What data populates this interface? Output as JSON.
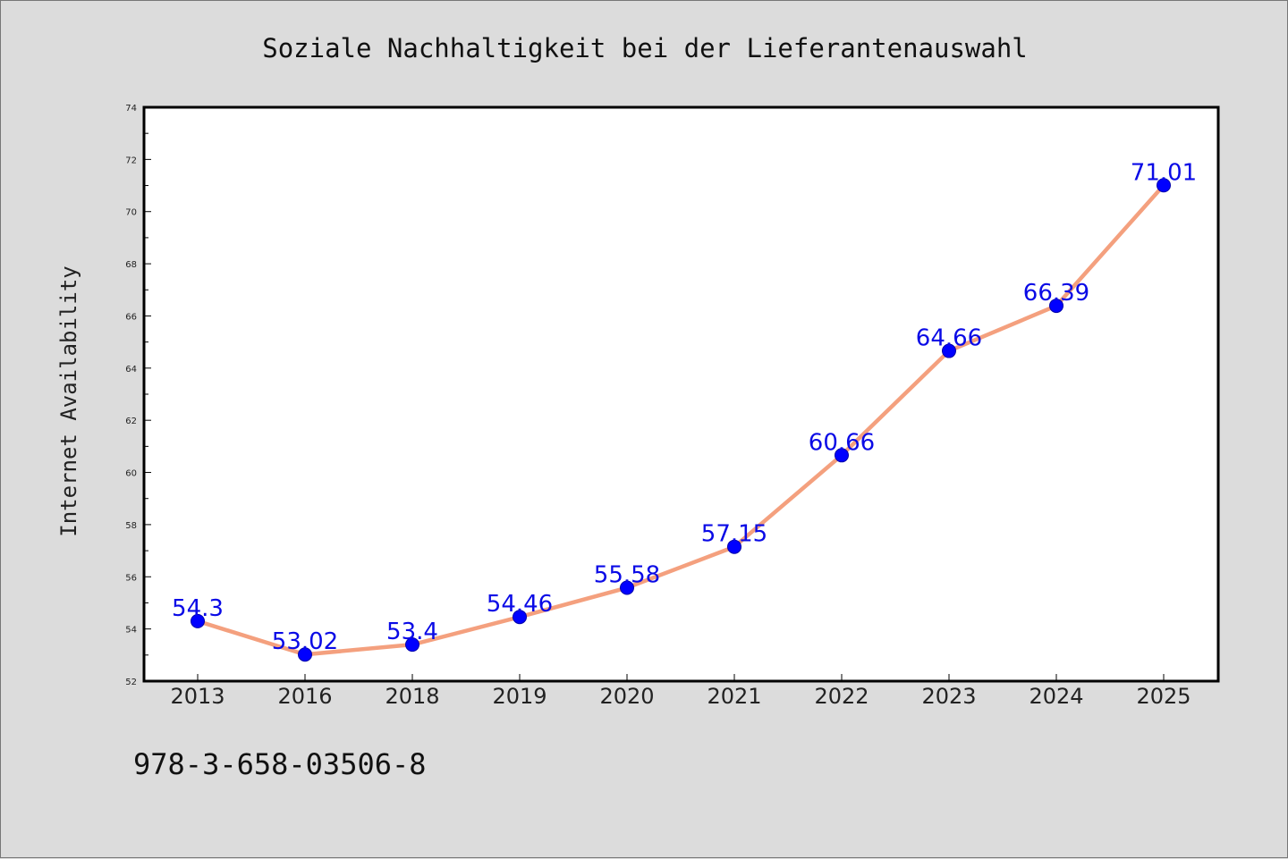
{
  "chart_data": {
    "type": "line",
    "title": "Soziale Nachhaltigkeit bei der Lieferantenauswahl",
    "xlabel": "",
    "ylabel": "Internet Availability",
    "categories": [
      "2013",
      "2016",
      "2018",
      "2019",
      "2020",
      "2021",
      "2022",
      "2023",
      "2024",
      "2025"
    ],
    "series": [
      {
        "values": [
          54.3,
          53.02,
          53.4,
          54.46,
          55.58,
          57.15,
          60.66,
          64.66,
          66.39,
          71.01
        ],
        "labels": [
          "54.3",
          "53.02",
          "53.4",
          "54.46",
          "55.58",
          "57.15",
          "60.66",
          "64.66",
          "66.39",
          "71.01"
        ]
      }
    ],
    "ylim": [
      52,
      74
    ],
    "yticks": [
      "52",
      "54",
      "56",
      "58",
      "60",
      "62",
      "64",
      "66",
      "68",
      "70",
      "72",
      "74"
    ],
    "grid": false,
    "legend": "none",
    "colors": {
      "line": "#f4a07e",
      "marker": "#0000ff",
      "data_label": "#0a0ae6",
      "background": "#dcdcdc",
      "plot_background": "#ffffff"
    }
  },
  "footnote": "978-3-658-03506-8"
}
